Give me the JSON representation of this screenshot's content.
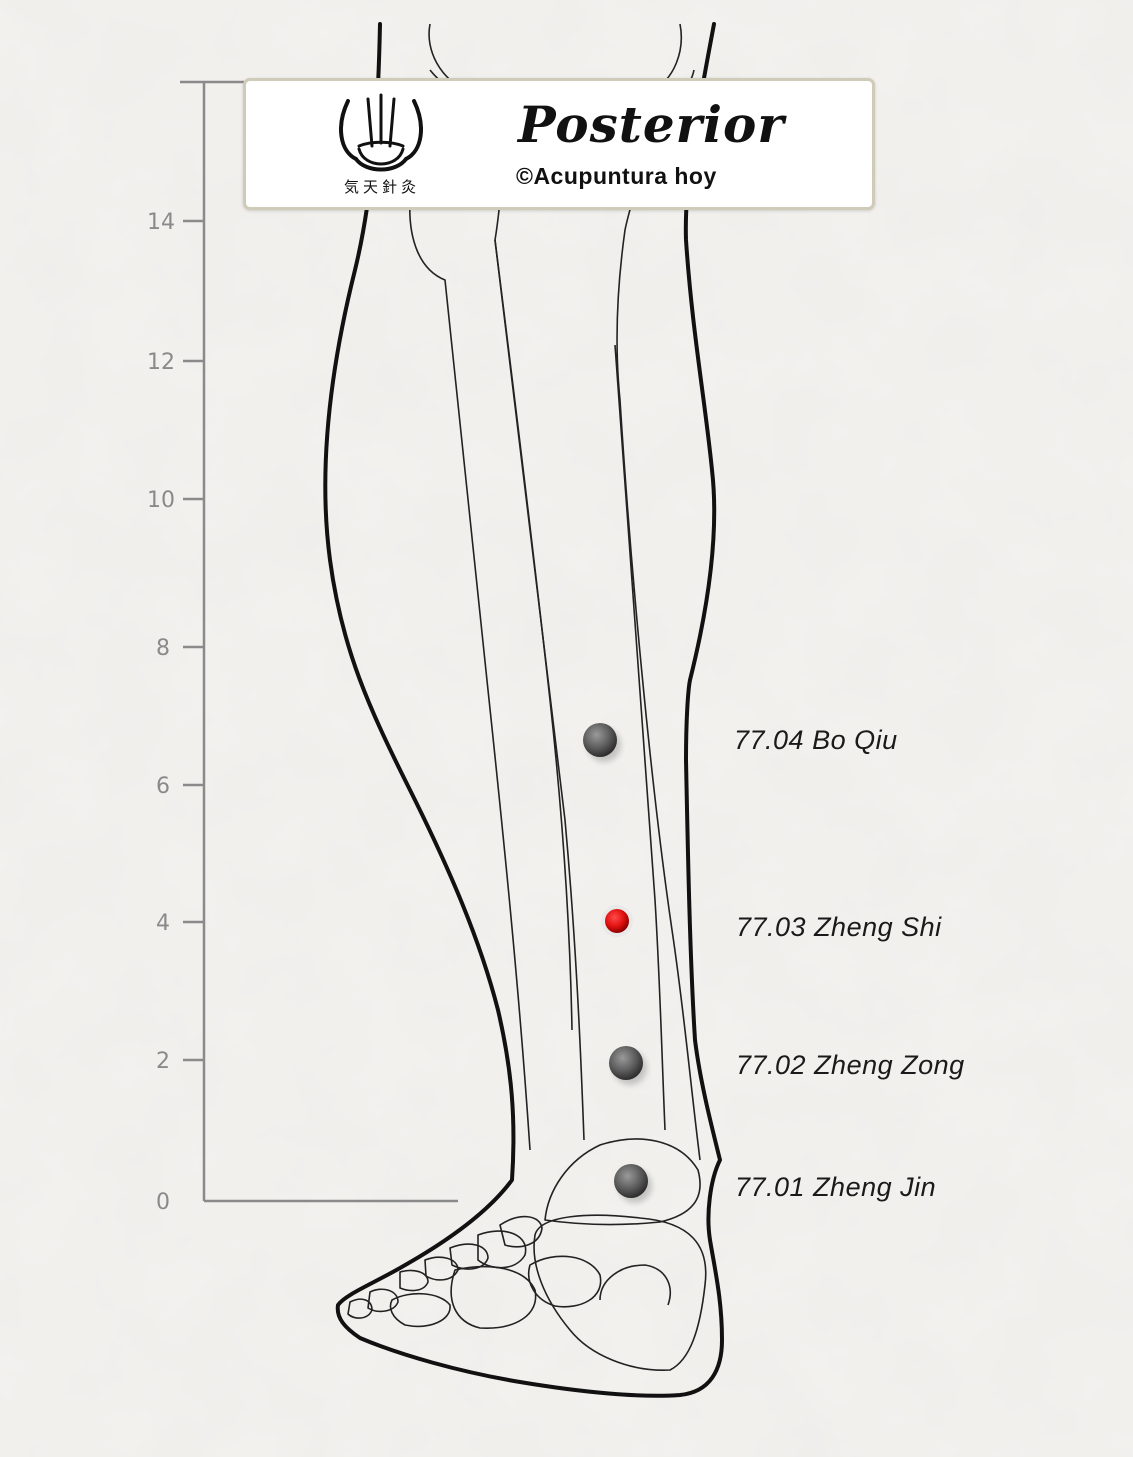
{
  "card": {
    "title": "Posterior",
    "copyright": "©Acupuntura hoy",
    "logo_text": "気天針灸",
    "logo_icon": "needles-bowl-icon"
  },
  "scale": {
    "ticks": [
      "0",
      "2",
      "4",
      "6",
      "8",
      "10",
      "12",
      "14"
    ]
  },
  "points": [
    {
      "label": "77.04 Bo Qiu",
      "color": "#5a5a5a",
      "highlighted": false
    },
    {
      "label": "77.03 Zheng Shi",
      "color": "#e01010",
      "highlighted": true
    },
    {
      "label": "77.02 Zheng Zong",
      "color": "#5a5a5a",
      "highlighted": false
    },
    {
      "label": "77.01 Zheng Jin",
      "color": "#5a5a5a",
      "highlighted": false
    }
  ],
  "colors": {
    "background": "#f3f2ef",
    "outline": "#111111",
    "bone": "#222222",
    "scale": "#8a8a8a",
    "highlight": "#e01010"
  }
}
